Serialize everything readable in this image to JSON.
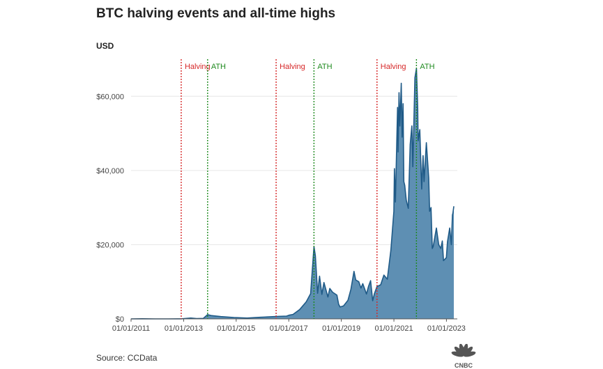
{
  "header": {
    "title": "BTC halving events and all-time highs",
    "unit": "USD"
  },
  "footer": {
    "source": "Source: CCData",
    "logo_text": "CNBC"
  },
  "colors": {
    "area_fill": "#5e8fb3",
    "area_line": "#1f5a87",
    "halving": "#d62728",
    "ath": "#1e8a1e",
    "grid": "#e6e6e6",
    "axis": "#555555"
  },
  "chart_data": {
    "type": "area",
    "title": "BTC halving events and all-time highs",
    "ylabel": "USD",
    "xlabel": "",
    "xlim": [
      "2011-01-01",
      "2023-06-01"
    ],
    "ylim": [
      0,
      70000
    ],
    "grid": "horizontal",
    "y_ticks": [
      {
        "value": 0,
        "label": "$0"
      },
      {
        "value": 20000,
        "label": "$20,000"
      },
      {
        "value": 40000,
        "label": "$40,000"
      },
      {
        "value": 60000,
        "label": "$60,000"
      }
    ],
    "x_ticks": [
      {
        "date": "2011-01-01",
        "label": "01/01/2011"
      },
      {
        "date": "2013-01-01",
        "label": "01/01/2013"
      },
      {
        "date": "2015-01-01",
        "label": "01/01/2015"
      },
      {
        "date": "2017-01-01",
        "label": "01/01/2017"
      },
      {
        "date": "2019-01-01",
        "label": "01/01/2019"
      },
      {
        "date": "2021-01-01",
        "label": "01/01/2021"
      },
      {
        "date": "2023-01-01",
        "label": "01/01/2023"
      }
    ],
    "events": [
      {
        "type": "halving",
        "date": "2012-11-28",
        "label": "Halving"
      },
      {
        "type": "ath",
        "date": "2013-11-30",
        "label": "ATH"
      },
      {
        "type": "halving",
        "date": "2016-07-09",
        "label": "Halving"
      },
      {
        "type": "ath",
        "date": "2017-12-17",
        "label": "ATH"
      },
      {
        "type": "halving",
        "date": "2020-05-11",
        "label": "Halving"
      },
      {
        "type": "ath",
        "date": "2021-11-10",
        "label": "ATH"
      }
    ],
    "series": [
      {
        "values": [
          [
            "2011-01-01",
            0.3
          ],
          [
            "2011-06-08",
            30
          ],
          [
            "2011-12-01",
            3
          ],
          [
            "2012-06-01",
            6
          ],
          [
            "2012-11-28",
            12
          ],
          [
            "2013-04-10",
            230
          ],
          [
            "2013-07-01",
            90
          ],
          [
            "2013-10-01",
            130
          ],
          [
            "2013-11-30",
            1150
          ],
          [
            "2014-01-15",
            900
          ],
          [
            "2014-06-01",
            620
          ],
          [
            "2014-12-01",
            380
          ],
          [
            "2015-06-01",
            230
          ],
          [
            "2015-12-01",
            430
          ],
          [
            "2016-07-09",
            650
          ],
          [
            "2016-12-01",
            750
          ],
          [
            "2017-01-05",
            1000
          ],
          [
            "2017-03-01",
            1200
          ],
          [
            "2017-06-01",
            2500
          ],
          [
            "2017-09-01",
            4600
          ],
          [
            "2017-11-01",
            6800
          ],
          [
            "2017-12-17",
            19500
          ],
          [
            "2018-01-06",
            17000
          ],
          [
            "2018-02-06",
            6900
          ],
          [
            "2018-03-05",
            11500
          ],
          [
            "2018-04-06",
            6600
          ],
          [
            "2018-05-05",
            9800
          ],
          [
            "2018-06-29",
            5900
          ],
          [
            "2018-07-25",
            8200
          ],
          [
            "2018-09-01",
            7200
          ],
          [
            "2018-11-01",
            6400
          ],
          [
            "2018-11-25",
            3900
          ],
          [
            "2018-12-15",
            3200
          ],
          [
            "2019-02-01",
            3500
          ],
          [
            "2019-04-03",
            5000
          ],
          [
            "2019-05-15",
            8000
          ],
          [
            "2019-06-26",
            12800
          ],
          [
            "2019-07-20",
            10500
          ],
          [
            "2019-09-01",
            10000
          ],
          [
            "2019-10-01",
            8300
          ],
          [
            "2019-10-26",
            9500
          ],
          [
            "2019-12-17",
            6700
          ],
          [
            "2020-01-15",
            8800
          ],
          [
            "2020-02-12",
            10300
          ],
          [
            "2020-03-12",
            4900
          ],
          [
            "2020-04-05",
            6800
          ],
          [
            "2020-05-11",
            8700
          ],
          [
            "2020-07-01",
            9200
          ],
          [
            "2020-08-15",
            11800
          ],
          [
            "2020-10-01",
            10700
          ],
          [
            "2020-11-20",
            18500
          ],
          [
            "2020-12-31",
            29000
          ],
          [
            "2021-01-08",
            40500
          ],
          [
            "2021-01-22",
            31500
          ],
          [
            "2021-02-21",
            57000
          ],
          [
            "2021-02-28",
            45000
          ],
          [
            "2021-03-13",
            61000
          ],
          [
            "2021-03-25",
            52000
          ],
          [
            "2021-04-13",
            63500
          ],
          [
            "2021-04-25",
            49000
          ],
          [
            "2021-05-08",
            58000
          ],
          [
            "2021-05-19",
            37000
          ],
          [
            "2021-06-01",
            36000
          ],
          [
            "2021-06-22",
            32000
          ],
          [
            "2021-07-20",
            29800
          ],
          [
            "2021-08-15",
            47000
          ],
          [
            "2021-09-07",
            52000
          ],
          [
            "2021-09-21",
            41000
          ],
          [
            "2021-10-20",
            65000
          ],
          [
            "2021-11-10",
            67500
          ],
          [
            "2021-11-28",
            57000
          ],
          [
            "2021-12-04",
            48000
          ],
          [
            "2021-12-27",
            51000
          ],
          [
            "2022-01-22",
            35000
          ],
          [
            "2022-02-10",
            44000
          ],
          [
            "2022-02-24",
            37000
          ],
          [
            "2022-03-28",
            47500
          ],
          [
            "2022-04-30",
            38000
          ],
          [
            "2022-05-12",
            29000
          ],
          [
            "2022-06-01",
            30000
          ],
          [
            "2022-06-18",
            19000
          ],
          [
            "2022-07-01",
            19500
          ],
          [
            "2022-08-14",
            24500
          ],
          [
            "2022-09-15",
            20000
          ],
          [
            "2022-10-15",
            19000
          ],
          [
            "2022-11-05",
            21000
          ],
          [
            "2022-11-21",
            15700
          ],
          [
            "2022-12-31",
            16500
          ],
          [
            "2023-01-15",
            20800
          ],
          [
            "2023-02-15",
            24500
          ],
          [
            "2023-03-10",
            20000
          ],
          [
            "2023-03-25",
            28000
          ],
          [
            "2023-04-01",
            28500
          ],
          [
            "2023-04-14",
            30300
          ]
        ]
      }
    ]
  }
}
